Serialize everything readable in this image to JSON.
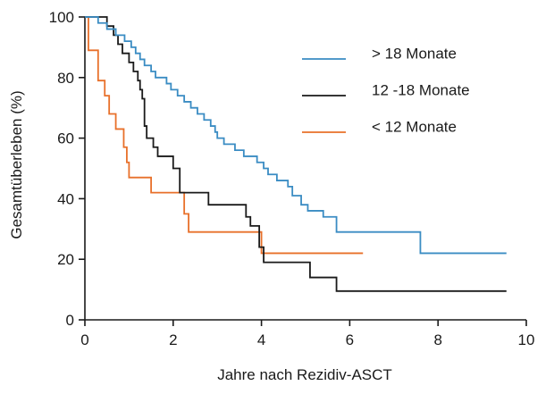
{
  "chart_data": {
    "type": "line",
    "step": true,
    "xlabel": "Jahre nach Rezidiv-ASCT",
    "ylabel": "Gesamtüberleben (%)",
    "xlim": [
      0,
      10
    ],
    "ylim": [
      0,
      100
    ],
    "xticks": [
      0,
      2,
      4,
      6,
      8,
      10
    ],
    "yticks": [
      0,
      20,
      40,
      60,
      80,
      100
    ],
    "grid": false,
    "legend_position": "top-right",
    "series": [
      {
        "name": "> 18 Monate",
        "color": "#3a8cc3",
        "points": [
          [
            0,
            100
          ],
          [
            0.3,
            100
          ],
          [
            0.3,
            98
          ],
          [
            0.5,
            98
          ],
          [
            0.5,
            96
          ],
          [
            0.7,
            96
          ],
          [
            0.7,
            94
          ],
          [
            0.9,
            94
          ],
          [
            0.9,
            92
          ],
          [
            1.05,
            92
          ],
          [
            1.05,
            90
          ],
          [
            1.15,
            90
          ],
          [
            1.15,
            88
          ],
          [
            1.25,
            88
          ],
          [
            1.25,
            86
          ],
          [
            1.35,
            86
          ],
          [
            1.35,
            84
          ],
          [
            1.5,
            84
          ],
          [
            1.5,
            82
          ],
          [
            1.6,
            82
          ],
          [
            1.6,
            80
          ],
          [
            1.85,
            80
          ],
          [
            1.85,
            78
          ],
          [
            1.95,
            78
          ],
          [
            1.95,
            76
          ],
          [
            2.1,
            76
          ],
          [
            2.1,
            74
          ],
          [
            2.25,
            74
          ],
          [
            2.25,
            72
          ],
          [
            2.4,
            72
          ],
          [
            2.4,
            70
          ],
          [
            2.55,
            70
          ],
          [
            2.55,
            68
          ],
          [
            2.7,
            68
          ],
          [
            2.7,
            66
          ],
          [
            2.85,
            66
          ],
          [
            2.85,
            64
          ],
          [
            2.95,
            64
          ],
          [
            2.95,
            62
          ],
          [
            3.0,
            62
          ],
          [
            3.0,
            60
          ],
          [
            3.15,
            60
          ],
          [
            3.15,
            58
          ],
          [
            3.4,
            58
          ],
          [
            3.4,
            56
          ],
          [
            3.6,
            56
          ],
          [
            3.6,
            54
          ],
          [
            3.9,
            54
          ],
          [
            3.9,
            52
          ],
          [
            4.05,
            52
          ],
          [
            4.05,
            50
          ],
          [
            4.15,
            50
          ],
          [
            4.15,
            48
          ],
          [
            4.35,
            48
          ],
          [
            4.35,
            46
          ],
          [
            4.6,
            46
          ],
          [
            4.6,
            44
          ],
          [
            4.7,
            44
          ],
          [
            4.7,
            41
          ],
          [
            4.9,
            41
          ],
          [
            4.9,
            38
          ],
          [
            5.05,
            38
          ],
          [
            5.05,
            36
          ],
          [
            5.4,
            36
          ],
          [
            5.4,
            34
          ],
          [
            5.7,
            34
          ],
          [
            5.7,
            29
          ],
          [
            7.6,
            29
          ],
          [
            7.6,
            22
          ],
          [
            9.55,
            22
          ]
        ]
      },
      {
        "name": "12 -18 Monate",
        "color": "#1a1a1a",
        "points": [
          [
            0,
            100
          ],
          [
            0.5,
            100
          ],
          [
            0.5,
            97
          ],
          [
            0.65,
            97
          ],
          [
            0.65,
            94
          ],
          [
            0.75,
            94
          ],
          [
            0.75,
            91
          ],
          [
            0.85,
            91
          ],
          [
            0.85,
            88
          ],
          [
            1.0,
            88
          ],
          [
            1.0,
            85
          ],
          [
            1.1,
            85
          ],
          [
            1.1,
            82
          ],
          [
            1.2,
            82
          ],
          [
            1.2,
            79
          ],
          [
            1.25,
            79
          ],
          [
            1.25,
            76
          ],
          [
            1.3,
            76
          ],
          [
            1.3,
            73
          ],
          [
            1.35,
            73
          ],
          [
            1.35,
            64
          ],
          [
            1.4,
            64
          ],
          [
            1.4,
            60
          ],
          [
            1.55,
            60
          ],
          [
            1.55,
            57
          ],
          [
            1.65,
            57
          ],
          [
            1.65,
            54
          ],
          [
            2.0,
            54
          ],
          [
            2.0,
            50
          ],
          [
            2.15,
            50
          ],
          [
            2.15,
            42
          ],
          [
            2.8,
            42
          ],
          [
            2.8,
            38
          ],
          [
            3.65,
            38
          ],
          [
            3.65,
            34
          ],
          [
            3.75,
            34
          ],
          [
            3.75,
            31
          ],
          [
            3.95,
            31
          ],
          [
            3.95,
            24
          ],
          [
            4.05,
            24
          ],
          [
            4.05,
            19
          ],
          [
            5.1,
            19
          ],
          [
            5.1,
            14
          ],
          [
            5.7,
            14
          ],
          [
            5.7,
            9.5
          ],
          [
            9.55,
            9.5
          ]
        ]
      },
      {
        "name": "< 12 Monate",
        "color": "#e8702a",
        "points": [
          [
            0,
            100
          ],
          [
            0.08,
            100
          ],
          [
            0.08,
            89
          ],
          [
            0.3,
            89
          ],
          [
            0.3,
            79
          ],
          [
            0.45,
            79
          ],
          [
            0.45,
            74
          ],
          [
            0.55,
            74
          ],
          [
            0.55,
            68
          ],
          [
            0.7,
            68
          ],
          [
            0.7,
            63
          ],
          [
            0.88,
            63
          ],
          [
            0.88,
            57
          ],
          [
            0.95,
            57
          ],
          [
            0.95,
            52
          ],
          [
            1.0,
            52
          ],
          [
            1.0,
            47
          ],
          [
            1.5,
            47
          ],
          [
            1.5,
            42
          ],
          [
            2.25,
            42
          ],
          [
            2.25,
            35
          ],
          [
            2.35,
            35
          ],
          [
            2.35,
            29
          ],
          [
            4.0,
            29
          ],
          [
            4.0,
            22
          ],
          [
            6.3,
            22
          ]
        ]
      }
    ]
  }
}
